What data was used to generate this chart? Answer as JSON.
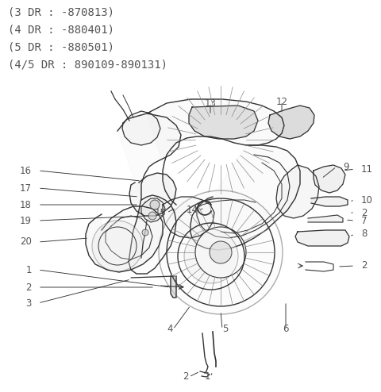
{
  "bg_color": "#ffffff",
  "text_color": "#555555",
  "line_color": "#333333",
  "figsize": [
    4.8,
    4.94
  ],
  "dpi": 100,
  "header_lines": [
    "(3 DR : -870813)",
    "(4 DR : -880401)",
    "(5 DR : -880501)",
    "(4/5 DR : 890109-890131)"
  ],
  "header_fontsize": 10,
  "label_fontsize": 8.5
}
